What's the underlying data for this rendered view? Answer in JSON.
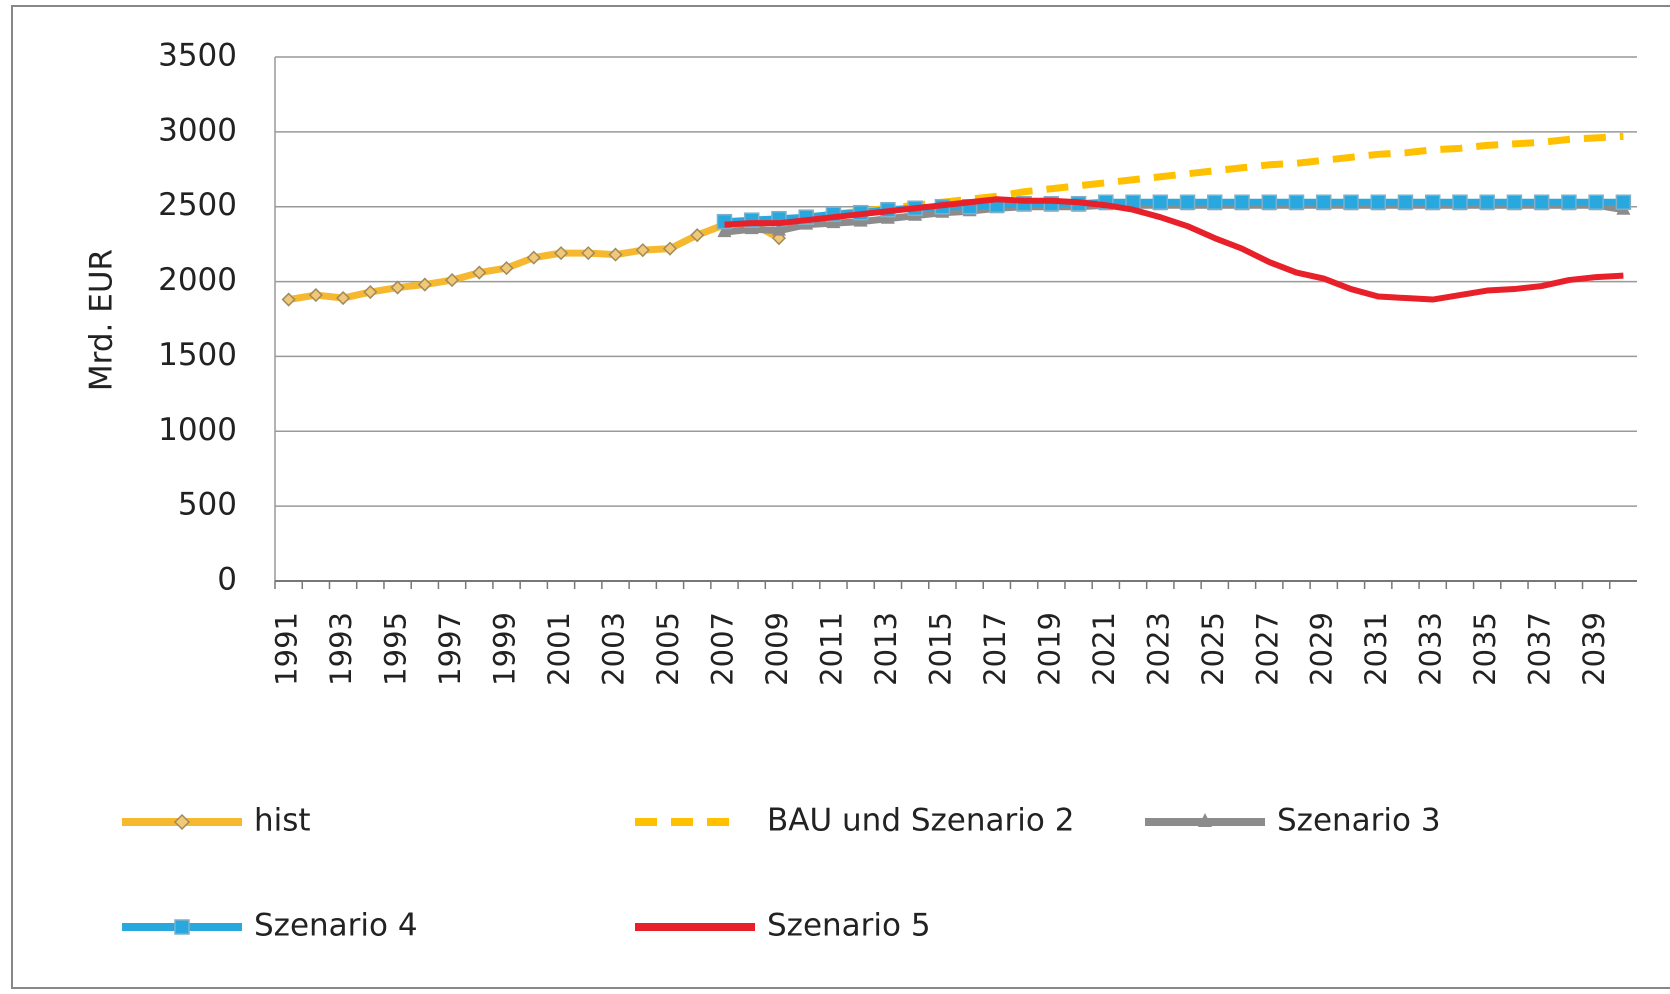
{
  "chart_data": {
    "type": "line",
    "y_label": "Mrd. EUR",
    "categories": [
      "1991",
      null,
      "1993",
      null,
      "1995",
      null,
      "1997",
      null,
      "1999",
      null,
      "2001",
      null,
      "2003",
      null,
      "2005",
      null,
      "2007",
      null,
      "2009",
      null,
      "2011",
      null,
      "2013",
      null,
      "2015",
      null,
      "2017",
      null,
      "2019",
      null,
      "2021",
      null,
      "2023",
      null,
      "2025",
      null,
      "2027",
      null,
      "2029",
      null,
      "2031",
      null,
      "2033",
      null,
      "2035",
      null,
      "2037",
      null,
      "2039",
      null
    ],
    "ylim": [
      0,
      3500
    ],
    "yticks": [
      0,
      500,
      1000,
      1500,
      2000,
      2500,
      3000,
      3500
    ],
    "grid": true,
    "legend": "bottom",
    "series": [
      {
        "name": "hist",
        "color": "#f5b82e",
        "marker": "diamond",
        "values": [
          1880,
          1910,
          1890,
          1930,
          1960,
          1980,
          2010,
          2060,
          2090,
          2160,
          2190,
          2190,
          2180,
          2210,
          2220,
          2310,
          2380,
          2390,
          2290,
          null,
          null,
          null,
          null,
          null,
          null,
          null,
          null,
          null,
          null,
          null,
          null,
          null,
          null,
          null,
          null,
          null,
          null,
          null,
          null,
          null,
          null,
          null,
          null,
          null,
          null,
          null,
          null,
          null,
          null,
          null
        ]
      },
      {
        "name": "BAU und Szenario 2",
        "color": "#ffc000",
        "dash": "dashed",
        "values": [
          null,
          null,
          null,
          null,
          null,
          null,
          null,
          null,
          null,
          null,
          null,
          null,
          null,
          null,
          null,
          null,
          2380,
          2400,
          2410,
          2430,
          2450,
          2470,
          2490,
          2510,
          2530,
          2550,
          2570,
          2600,
          2620,
          2640,
          2660,
          2680,
          2700,
          2720,
          2740,
          2760,
          2780,
          2790,
          2810,
          2830,
          2850,
          2860,
          2880,
          2890,
          2910,
          2920,
          2930,
          2950,
          2960,
          2970
        ]
      },
      {
        "name": "Szenario 3",
        "color": "#8c8c8c",
        "marker": "triangle",
        "values": [
          null,
          null,
          null,
          null,
          null,
          null,
          null,
          null,
          null,
          null,
          null,
          null,
          null,
          null,
          null,
          null,
          2330,
          2350,
          2340,
          2380,
          2390,
          2400,
          2420,
          2440,
          2460,
          2470,
          2490,
          2500,
          2500,
          2500,
          2510,
          2510,
          2510,
          2510,
          2510,
          2510,
          2510,
          2510,
          2510,
          2510,
          2510,
          2510,
          2510,
          2510,
          2510,
          2510,
          2510,
          2510,
          2510,
          2480
        ]
      },
      {
        "name": "Szenario 4",
        "color": "#29a8e0",
        "marker": "square",
        "values": [
          null,
          null,
          null,
          null,
          null,
          null,
          null,
          null,
          null,
          null,
          null,
          null,
          null,
          null,
          null,
          null,
          2400,
          2410,
          2420,
          2430,
          2450,
          2460,
          2480,
          2490,
          2500,
          2500,
          2510,
          2520,
          2520,
          2520,
          2530,
          2530,
          2530,
          2530,
          2530,
          2530,
          2530,
          2530,
          2530,
          2530,
          2530,
          2530,
          2530,
          2530,
          2530,
          2530,
          2530,
          2530,
          2530,
          2530
        ]
      },
      {
        "name": "Szenario 5",
        "color": "#e8202a",
        "values": [
          null,
          null,
          null,
          null,
          null,
          null,
          null,
          null,
          null,
          null,
          null,
          null,
          null,
          null,
          null,
          null,
          2380,
          2390,
          2390,
          2410,
          2430,
          2450,
          2470,
          2490,
          2510,
          2530,
          2550,
          2540,
          2540,
          2530,
          2510,
          2480,
          2430,
          2370,
          2290,
          2220,
          2130,
          2060,
          2020,
          1950,
          1900,
          1890,
          1880,
          1910,
          1940,
          1950,
          1970,
          2010,
          2030,
          2040
        ]
      }
    ]
  }
}
